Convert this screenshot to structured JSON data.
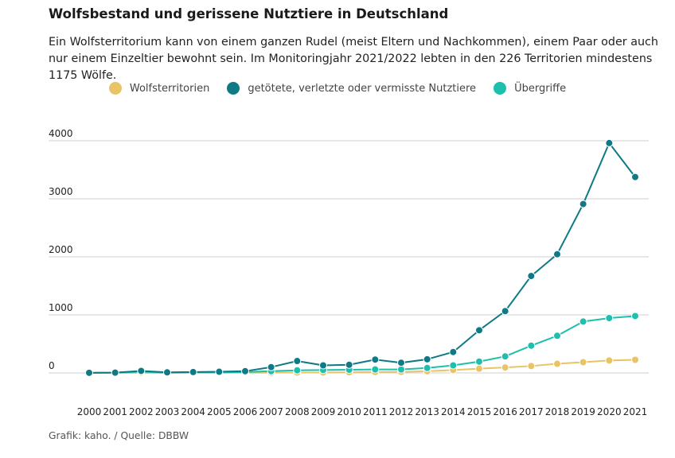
{
  "header": {
    "title": "Wolfsbestand und gerissene Nutztiere in Deutschland",
    "subtitle": "Ein Wolfsterritorium kann von einem ganzen Rudel (meist Eltern und Nachkommen), einem Paar oder auch nur einem Einzeltier bewohnt sein. Im Monitoringjahr 2021/2022 lebten in den 226 Territorien mindestens 1175 Wölfe."
  },
  "source": "Grafik: kaho. / Quelle: DBBW",
  "chart_data": {
    "type": "line",
    "title": "Wolfsbestand und gerissene Nutztiere in Deutschland",
    "xlabel": "",
    "ylabel": "",
    "x": [
      "2000",
      "2001",
      "2002",
      "2003",
      "2004",
      "2005",
      "2006",
      "2007",
      "2008",
      "2009",
      "2010",
      "2011",
      "2012",
      "2013",
      "2014",
      "2015",
      "2016",
      "2017",
      "2018",
      "2019",
      "2020",
      "2021"
    ],
    "ylim": [
      0,
      4000
    ],
    "yticks": [
      "0",
      "1000",
      "2000",
      "3000",
      "4000"
    ],
    "grid": true,
    "legend_position": "top",
    "series": [
      {
        "name": "Wolfsterritorien",
        "color": "#e8c467",
        "values": [
          1,
          1,
          2,
          2,
          3,
          4,
          4,
          5,
          6,
          7,
          11,
          15,
          18,
          29,
          49,
          73,
          94,
          119,
          157,
          185,
          214,
          226
        ]
      },
      {
        "name": "getötete, verletzte oder vermisste Nutztiere",
        "color": "#0e7a86",
        "values": [
          2,
          5,
          35,
          10,
          15,
          20,
          30,
          100,
          205,
          130,
          140,
          230,
          175,
          235,
          360,
          735,
          1065,
          1670,
          2045,
          2910,
          3960,
          3375
        ]
      },
      {
        "name": "Übergriffe",
        "color": "#1dbfad",
        "values": [
          1,
          5,
          20,
          5,
          10,
          10,
          15,
          30,
          45,
          50,
          55,
          60,
          60,
          85,
          130,
          195,
          285,
          470,
          640,
          885,
          945,
          980
        ]
      }
    ]
  }
}
